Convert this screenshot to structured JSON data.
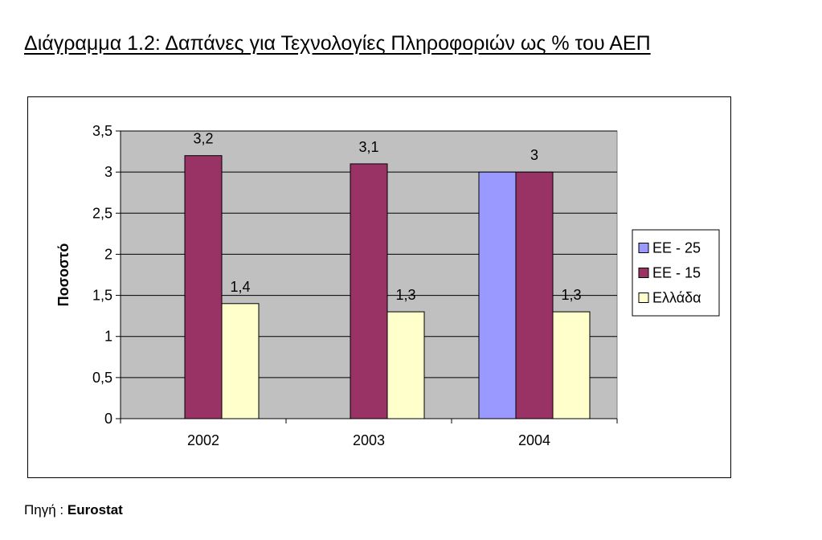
{
  "figure": {
    "title": "Διάγραμμα 1.2: Δαπάνες για Τεχνολογίες Πληροφοριών ως % του ΑΕΠ",
    "source_label": "Πηγή : ",
    "source_value": "Eurostat"
  },
  "chart_data": {
    "type": "bar",
    "categories": [
      "2002",
      "2003",
      "2004"
    ],
    "series": [
      {
        "name": "ΕΕ - 25",
        "color": "#9999ff",
        "values": [
          null,
          null,
          3
        ]
      },
      {
        "name": "ΕΕ - 15",
        "color": "#993366",
        "values": [
          3.2,
          3.1,
          3
        ]
      },
      {
        "name": "Ελλάδα",
        "color": "#ffffcc",
        "values": [
          1.4,
          1.3,
          1.3
        ]
      }
    ],
    "data_labels": [
      {
        "category": "2002",
        "series": "ΕΕ - 15",
        "text": "3,2"
      },
      {
        "category": "2002",
        "series": "Ελλάδα",
        "text": "1,4"
      },
      {
        "category": "2003",
        "series": "ΕΕ - 15",
        "text": "3,1"
      },
      {
        "category": "2003",
        "series": "Ελλάδα",
        "text": "1,3"
      },
      {
        "category": "2004",
        "series": "ΕΕ - 15",
        "text": "3"
      },
      {
        "category": "2004",
        "series": "Ελλάδα",
        "text": "1,3"
      }
    ],
    "ylabel": "Ποσοστό",
    "xlabel": "",
    "ylim": [
      0,
      3.5
    ],
    "yticks": [
      0,
      0.5,
      1,
      1.5,
      2,
      2.5,
      3,
      3.5
    ],
    "ytick_labels": [
      "0",
      "0,5",
      "1",
      "1,5",
      "2",
      "2,5",
      "3",
      "3,5"
    ],
    "plot_background": "#c0c0c0",
    "grid": true,
    "legend_position": "right"
  }
}
